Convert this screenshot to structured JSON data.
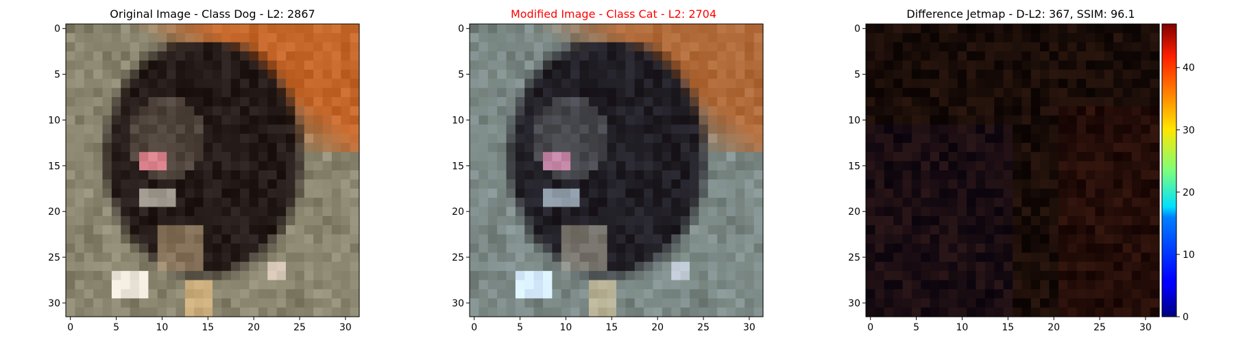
{
  "figure": {
    "panels": [
      {
        "id": "original",
        "title": "Original Image - Class Dog - L2: 2867",
        "title_color": "#000000",
        "content": "photo",
        "tint": "original"
      },
      {
        "id": "modified",
        "title": "Modified Image - Class Cat - L2: 2704",
        "title_color": "#ff0000",
        "content": "photo",
        "tint": "modified"
      },
      {
        "id": "difference",
        "title": "Difference Jetmap - D-L2: 367, SSIM: 96.1",
        "title_color": "#000000",
        "content": "difference"
      }
    ],
    "axis_ticks": [
      "0",
      "5",
      "10",
      "15",
      "20",
      "25",
      "30"
    ],
    "axis_tick_values": [
      0,
      5,
      10,
      15,
      20,
      25,
      30
    ],
    "pixel_grid": 32,
    "colorbar": {
      "colormap": "jet",
      "min": 0,
      "max": 47,
      "ticks": [
        "0",
        "10",
        "20",
        "30",
        "40"
      ],
      "tick_values": [
        0,
        10,
        20,
        30,
        40
      ]
    }
  }
}
